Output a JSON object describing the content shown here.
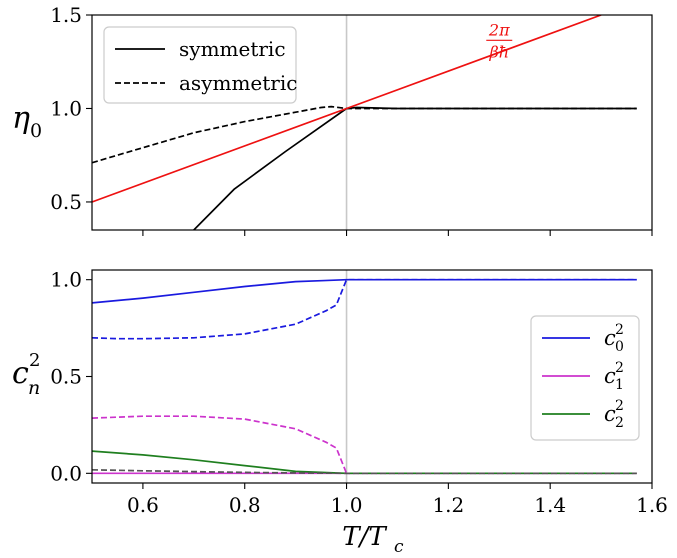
{
  "chart_data": [
    {
      "type": "line",
      "ylabel": "η",
      "ylabel_sub": "0",
      "xlim": [
        0.5,
        1.6
      ],
      "ylim": [
        0.35,
        1.5
      ],
      "yticks": [
        0.5,
        1.0,
        1.5
      ],
      "ytick_labels": [
        "0.5",
        "1.0",
        "1.5"
      ],
      "xticks": [
        0.6,
        0.8,
        1.0,
        1.2,
        1.4,
        1.6
      ],
      "legend_placement": "top-left",
      "vline_x": 1.0,
      "annotation": {
        "numerator": "2π",
        "denominator": "βħ",
        "x": 1.3,
        "y": 1.37,
        "color": "#ee1111"
      },
      "series": [
        {
          "name": "symmetric",
          "style": "solid",
          "color": "#000000",
          "x": [
            0.7,
            0.78,
            0.88,
            1.0,
            1.02,
            1.1,
            1.2,
            1.3,
            1.4,
            1.5,
            1.57
          ],
          "y": [
            0.35,
            0.57,
            0.77,
            1.0,
            1.005,
            1.0,
            1.0,
            1.0,
            1.0,
            1.0,
            1.0
          ]
        },
        {
          "name": "asymmetric",
          "style": "dashed",
          "color": "#000000",
          "x": [
            0.5,
            0.6,
            0.7,
            0.8,
            0.9,
            0.95,
            0.97,
            1.0,
            1.02,
            1.1,
            1.2,
            1.3,
            1.4,
            1.5,
            1.57
          ],
          "y": [
            0.71,
            0.79,
            0.87,
            0.93,
            0.98,
            1.005,
            1.01,
            1.0,
            1.0,
            1.0,
            1.0,
            1.0,
            1.0,
            1.0,
            1.0
          ]
        },
        {
          "style": "solid",
          "color": "#ee1111",
          "x": [
            0.5,
            1.5
          ],
          "y": [
            0.5,
            1.5
          ]
        }
      ]
    },
    {
      "type": "line",
      "xlabel": "T/T",
      "xlabel_sub": "c",
      "ylabel": "c",
      "ylabel_sub": "n",
      "ylabel_sup": "2",
      "xlim": [
        0.5,
        1.6
      ],
      "ylim": [
        -0.05,
        1.05
      ],
      "yticks": [
        0.0,
        0.5,
        1.0
      ],
      "ytick_labels": [
        "0.0",
        "0.5",
        "1.0"
      ],
      "xticks": [
        0.6,
        0.8,
        1.0,
        1.2,
        1.4,
        1.6
      ],
      "xtick_labels": [
        "0.6",
        "0.8",
        "1.0",
        "1.2",
        "1.4",
        "1.6"
      ],
      "legend_placement": "center-right",
      "vline_x": 1.0,
      "legend": [
        {
          "base": "c",
          "sub": "0",
          "sup": "2",
          "color": "#1a1adf"
        },
        {
          "base": "c",
          "sub": "1",
          "sup": "2",
          "color": "#cc33cc"
        },
        {
          "base": "c",
          "sub": "2",
          "sup": "2",
          "color": "#1f7f1f"
        }
      ],
      "series": [
        {
          "style": "solid",
          "color": "#1a1adf",
          "x": [
            0.5,
            0.6,
            0.7,
            0.8,
            0.9,
            0.95,
            1.0,
            1.1,
            1.2,
            1.3,
            1.4,
            1.5,
            1.57
          ],
          "y": [
            0.88,
            0.905,
            0.935,
            0.965,
            0.99,
            0.995,
            1.0,
            1.0,
            1.0,
            1.0,
            1.0,
            1.0,
            1.0
          ]
        },
        {
          "style": "dashed",
          "color": "#1a1adf",
          "x": [
            0.5,
            0.55,
            0.6,
            0.7,
            0.8,
            0.9,
            0.96,
            0.98,
            1.0,
            1.1,
            1.2,
            1.3,
            1.4,
            1.5,
            1.57
          ],
          "y": [
            0.7,
            0.695,
            0.695,
            0.7,
            0.72,
            0.77,
            0.84,
            0.87,
            1.0,
            1.0,
            1.0,
            1.0,
            1.0,
            1.0,
            1.0
          ]
        },
        {
          "style": "solid",
          "color": "#cc33cc",
          "x": [
            0.5,
            1.57
          ],
          "y": [
            0.0,
            0.0
          ]
        },
        {
          "style": "dashed",
          "color": "#cc33cc",
          "x": [
            0.5,
            0.6,
            0.7,
            0.8,
            0.9,
            0.96,
            0.98,
            1.0,
            1.1,
            1.2,
            1.3,
            1.4,
            1.5,
            1.57
          ],
          "y": [
            0.285,
            0.295,
            0.295,
            0.28,
            0.23,
            0.16,
            0.13,
            0.0,
            0.0,
            0.0,
            0.0,
            0.0,
            0.0,
            0.0
          ]
        },
        {
          "style": "solid",
          "color": "#1f7f1f",
          "x": [
            0.5,
            0.6,
            0.7,
            0.8,
            0.9,
            1.0,
            1.1,
            1.2,
            1.3,
            1.4,
            1.5,
            1.57
          ],
          "y": [
            0.115,
            0.095,
            0.07,
            0.04,
            0.01,
            0.0,
            0.0,
            0.0,
            0.0,
            0.0,
            0.0,
            0.0
          ]
        },
        {
          "style": "dashed",
          "color": "#555555",
          "x": [
            0.5,
            0.6,
            0.7,
            0.8,
            0.9,
            1.0,
            1.1,
            1.57
          ],
          "y": [
            0.018,
            0.013,
            0.009,
            0.005,
            0.002,
            0.0,
            0.0,
            0.0
          ]
        }
      ]
    }
  ]
}
